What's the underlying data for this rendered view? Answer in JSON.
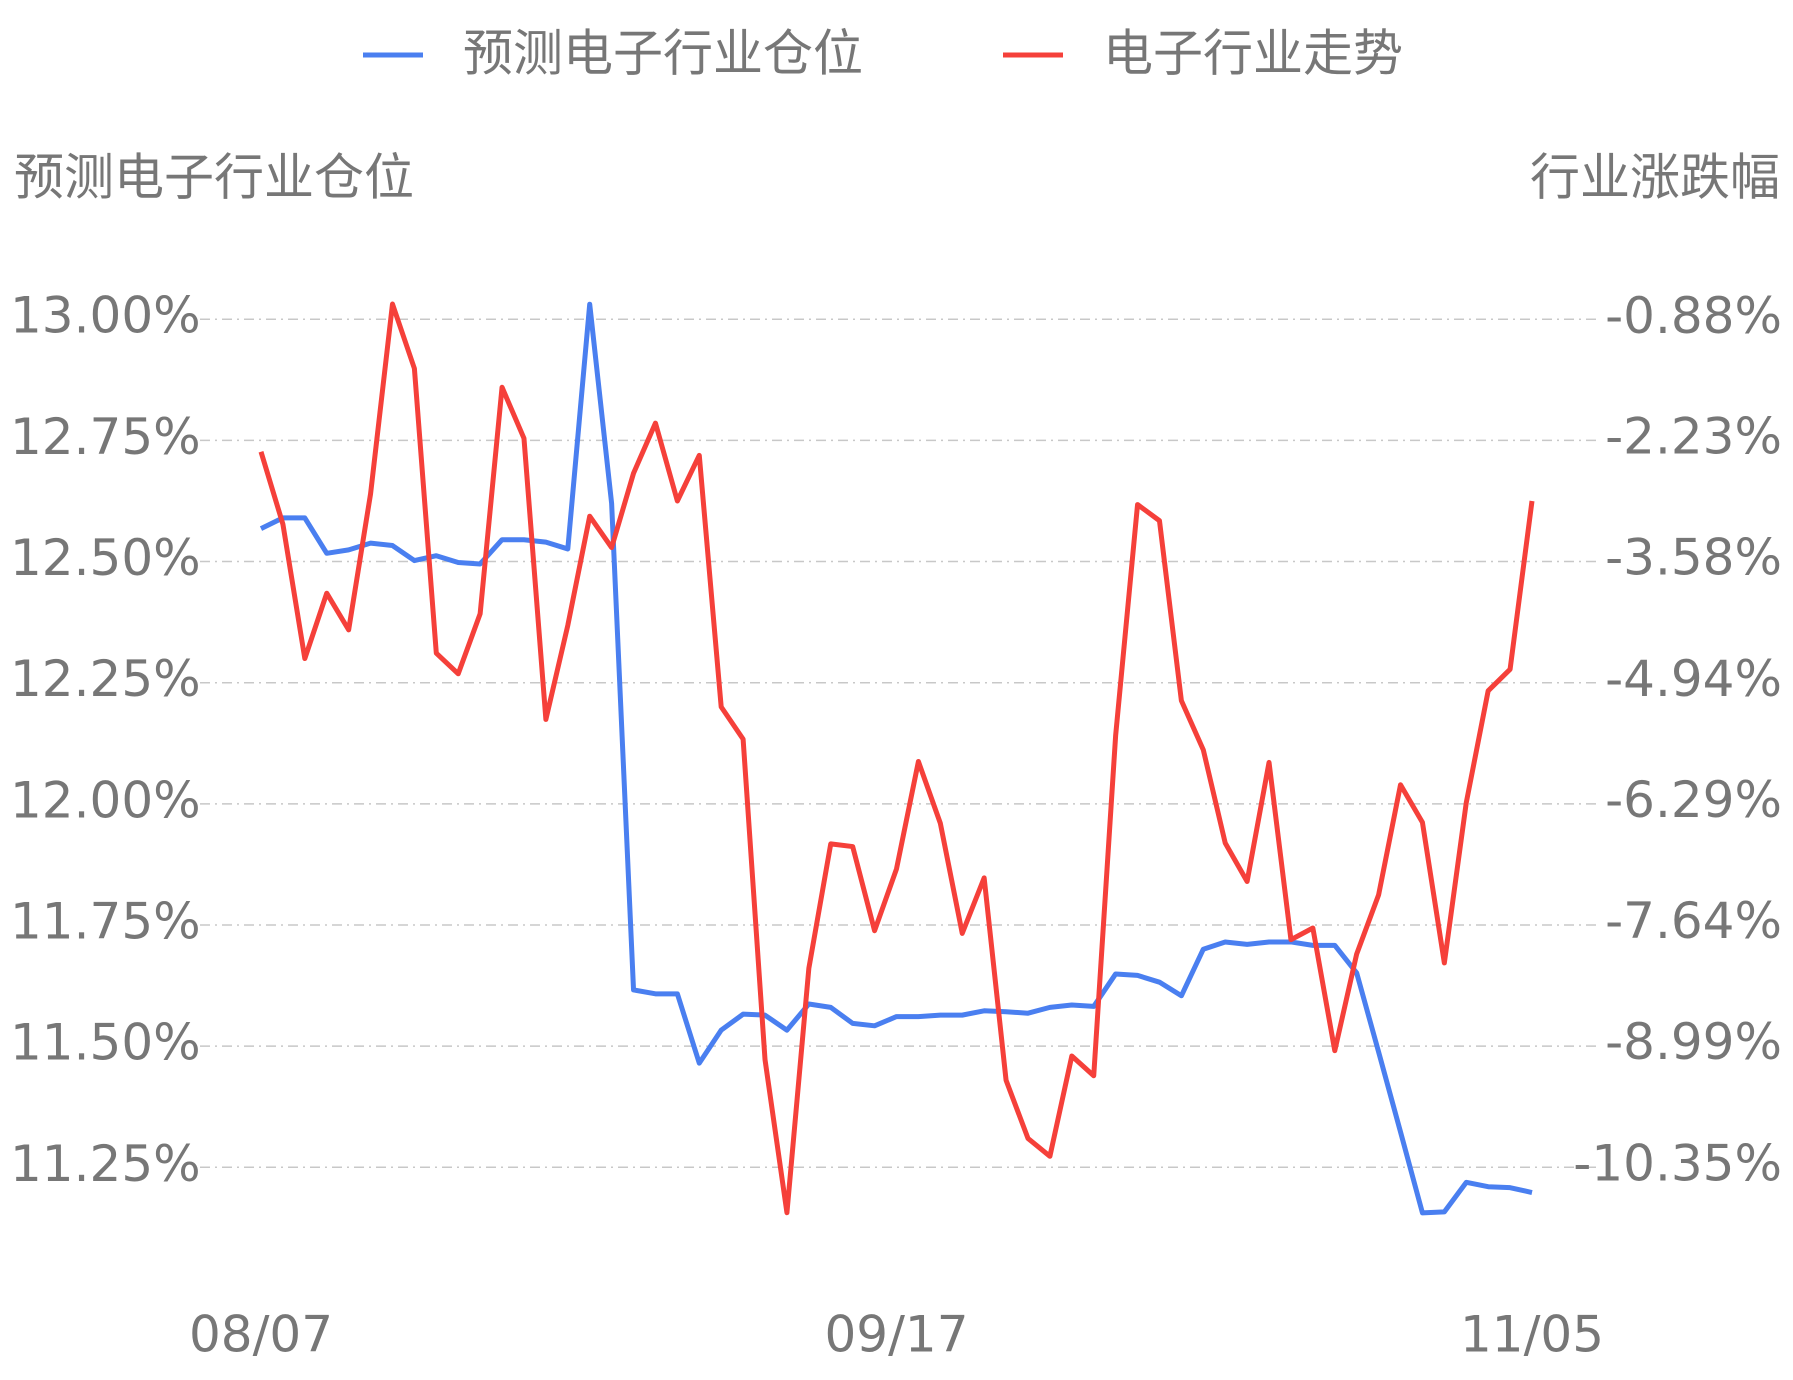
{
  "chart_data": {
    "type": "line",
    "y_label": "预测电子行业仓位",
    "y2_label": "行业涨跌幅",
    "categories": [
      "08/07",
      null,
      null,
      null,
      null,
      null,
      null,
      null,
      null,
      null,
      null,
      null,
      null,
      null,
      null,
      null,
      null,
      null,
      null,
      null,
      null,
      null,
      null,
      null,
      null,
      null,
      null,
      null,
      null,
      "09/17",
      null,
      null,
      null,
      null,
      null,
      null,
      null,
      null,
      null,
      null,
      null,
      null,
      null,
      null,
      null,
      null,
      null,
      null,
      null,
      null,
      null,
      null,
      null,
      null,
      null,
      null,
      null,
      null,
      "11/05"
    ],
    "series": [
      {
        "name": "预测电子行业仓位",
        "color": "#4a7ff0",
        "axis": "y",
        "values": [
          12.568,
          12.59,
          12.59,
          12.517,
          12.524,
          12.538,
          12.533,
          12.502,
          12.512,
          12.498,
          12.495,
          12.545,
          12.545,
          12.54,
          12.526,
          13.031,
          12.62,
          11.616,
          11.608,
          11.608,
          11.465,
          11.533,
          11.566,
          11.564,
          11.533,
          11.587,
          11.58,
          11.547,
          11.542,
          11.561,
          11.561,
          11.564,
          11.564,
          11.573,
          11.571,
          11.568,
          11.58,
          11.585,
          11.582,
          11.649,
          11.646,
          11.632,
          11.604,
          11.7,
          11.715,
          11.71,
          11.715,
          11.715,
          11.708,
          11.708,
          11.651,
          11.488,
          11.323,
          11.156,
          11.158,
          11.219,
          11.21,
          11.208,
          11.198
        ]
      },
      {
        "name": "电子行业走势",
        "color": "#f5403a",
        "axis": "y2",
        "values": [
          -2.36,
          -3.17,
          -4.67,
          -3.94,
          -4.35,
          -2.83,
          -0.71,
          -1.43,
          -4.61,
          -4.84,
          -4.17,
          -1.64,
          -2.21,
          -5.35,
          -4.3,
          -3.08,
          -3.43,
          -2.6,
          -2.04,
          -2.91,
          -2.4,
          -5.21,
          -5.57,
          -9.15,
          -10.86,
          -8.13,
          -6.74,
          -6.77,
          -7.71,
          -7.02,
          -5.82,
          -6.51,
          -7.74,
          -7.12,
          -9.38,
          -10.03,
          -10.23,
          -9.11,
          -9.33,
          -5.53,
          -2.95,
          -3.13,
          -5.14,
          -5.69,
          -6.73,
          -7.16,
          -5.83,
          -7.81,
          -7.68,
          -9.05,
          -7.97,
          -7.31,
          -6.08,
          -6.5,
          -8.07,
          -6.28,
          -5.03,
          -4.79,
          -2.91
        ]
      }
    ],
    "ylim": [
      11.1,
      13.05
    ],
    "yticks": [
      {
        "value": 13,
        "label": "13.00%"
      },
      {
        "value": 12.75,
        "label": "12.75%"
      },
      {
        "value": 12.5,
        "label": "12.50%"
      },
      {
        "value": 12.25,
        "label": "12.25%"
      },
      {
        "value": 12,
        "label": "12.00%"
      },
      {
        "value": 11.75,
        "label": "11.75%"
      },
      {
        "value": 11.5,
        "label": "11.50%"
      },
      {
        "value": 11.25,
        "label": "11.25%"
      }
    ],
    "y2lim": [
      -11.165,
      -0.609
    ],
    "y2ticks": [
      {
        "value": -0.88,
        "label": "-0.88%"
      },
      {
        "value": -2.23,
        "label": "-2.23%"
      },
      {
        "value": -3.58,
        "label": "-3.58%"
      },
      {
        "value": -4.94,
        "label": "-4.94%"
      },
      {
        "value": -6.29,
        "label": "-6.29%"
      },
      {
        "value": -7.64,
        "label": "-7.64%"
      },
      {
        "value": -8.99,
        "label": "-8.99%"
      },
      {
        "value": -10.35,
        "label": "-10.35%"
      }
    ],
    "grid": true
  }
}
